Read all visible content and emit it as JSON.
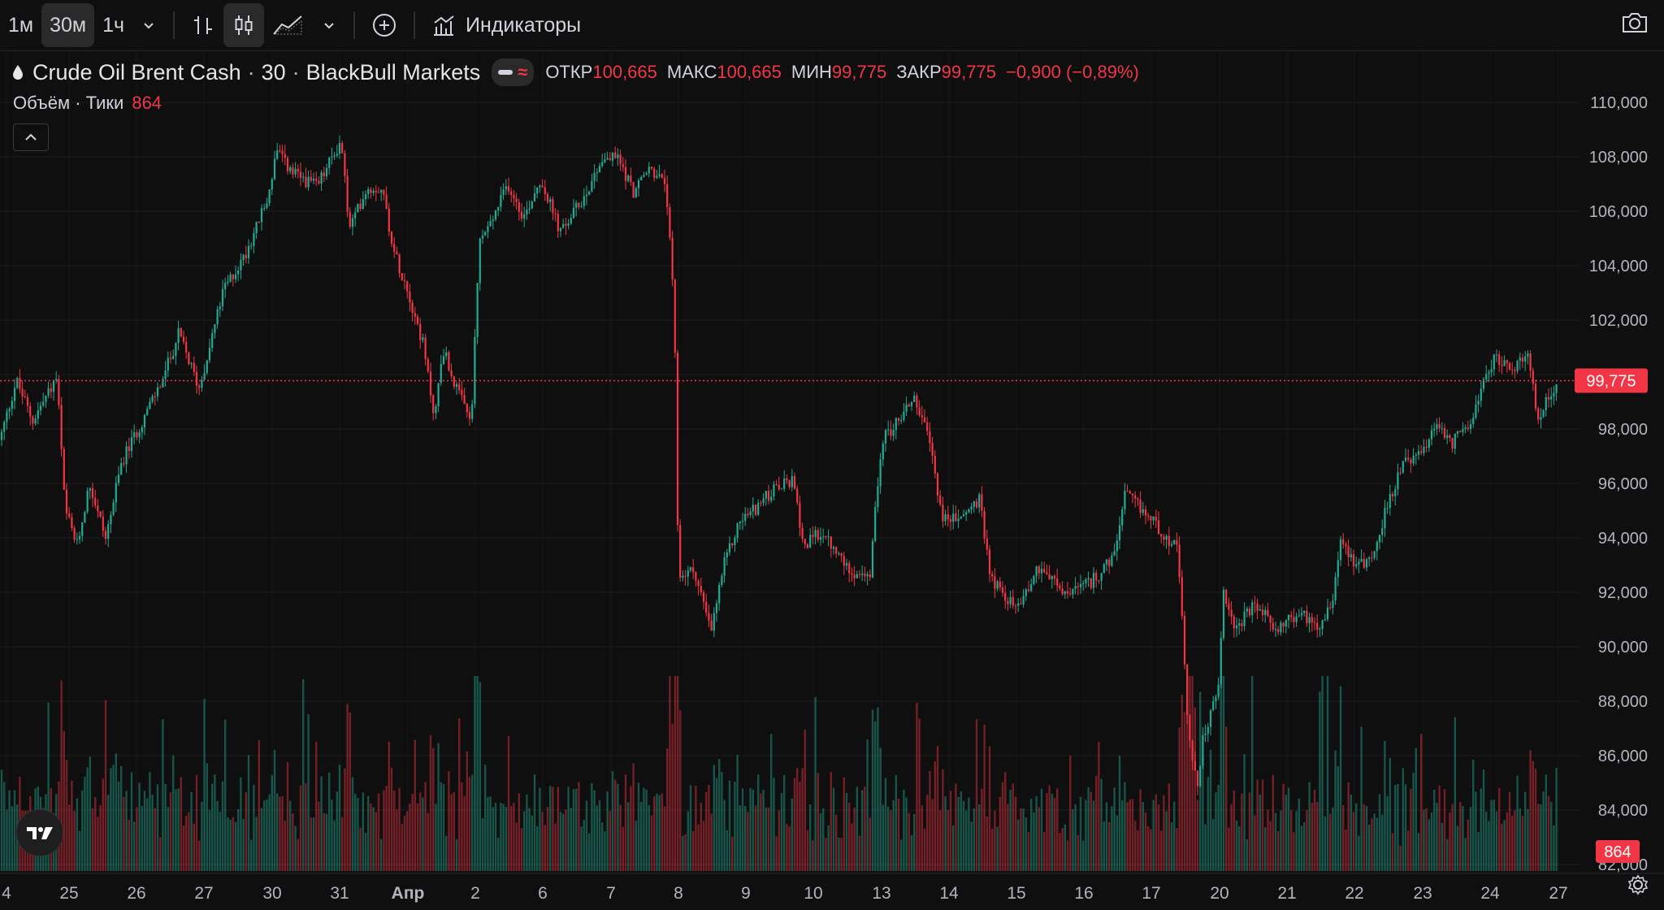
{
  "toolbar": {
    "intervals": [
      "1м",
      "30м",
      "1ч"
    ],
    "active_interval": "30м",
    "indicators_label": "Индикаторы"
  },
  "legend": {
    "symbol": "Crude Oil Brent Cash",
    "interval": "30",
    "exchange": "BlackBull Markets",
    "open_label": "ОТКР",
    "open": "100,665",
    "high_label": "МАКС",
    "high": "100,665",
    "low_label": "МИН",
    "low": "99,775",
    "close_label": "ЗАКР",
    "close": "99,775",
    "change": "−0,900 (−0,89%)"
  },
  "volume_legend": {
    "label": "Объём · Тики",
    "value": "864"
  },
  "colors": {
    "up": "#22ab94",
    "down": "#f23645",
    "background": "#0f0f0f",
    "grid": "#1e1e1e"
  },
  "chart_data": {
    "type": "candlestick",
    "ylim": [
      82000,
      110000
    ],
    "y_ticks": [
      "110,000",
      "108,000",
      "106,000",
      "104,000",
      "102,000",
      "100,000",
      "98,000",
      "96,000",
      "94,000",
      "92,000",
      "90,000",
      "88,000",
      "86,000",
      "84,000",
      "82,000"
    ],
    "x_ticks": [
      "4",
      "25",
      "26",
      "27",
      "30",
      "31",
      "Апр",
      "2",
      "6",
      "7",
      "8",
      "9",
      "10",
      "13",
      "14",
      "15",
      "16",
      "17",
      "20",
      "21",
      "22",
      "23",
      "24",
      "27"
    ],
    "last_price": "99,775",
    "last_volume": "864",
    "price_path": [
      [
        0,
        97600
      ],
      [
        20,
        99800
      ],
      [
        40,
        98300
      ],
      [
        70,
        99900
      ],
      [
        80,
        95000
      ],
      [
        95,
        93700
      ],
      [
        110,
        96000
      ],
      [
        130,
        94000
      ],
      [
        150,
        96800
      ],
      [
        175,
        98300
      ],
      [
        200,
        99800
      ],
      [
        220,
        101500
      ],
      [
        245,
        99500
      ],
      [
        275,
        103100
      ],
      [
        300,
        104300
      ],
      [
        330,
        106500
      ],
      [
        340,
        108200
      ],
      [
        360,
        107400
      ],
      [
        390,
        106900
      ],
      [
        420,
        108600
      ],
      [
        430,
        105300
      ],
      [
        450,
        106800
      ],
      [
        470,
        106900
      ],
      [
        485,
        104500
      ],
      [
        500,
        103300
      ],
      [
        520,
        101200
      ],
      [
        535,
        98400
      ],
      [
        545,
        101000
      ],
      [
        560,
        99600
      ],
      [
        580,
        98200
      ],
      [
        590,
        104900
      ],
      [
        605,
        105600
      ],
      [
        625,
        107000
      ],
      [
        645,
        105800
      ],
      [
        665,
        107200
      ],
      [
        690,
        105200
      ],
      [
        720,
        106600
      ],
      [
        740,
        107900
      ],
      [
        760,
        108000
      ],
      [
        780,
        106700
      ],
      [
        800,
        107600
      ],
      [
        820,
        106900
      ],
      [
        830,
        102100
      ],
      [
        835,
        92600
      ],
      [
        855,
        92800
      ],
      [
        875,
        90500
      ],
      [
        890,
        92900
      ],
      [
        910,
        94600
      ],
      [
        930,
        95100
      ],
      [
        950,
        95700
      ],
      [
        975,
        96100
      ],
      [
        990,
        93700
      ],
      [
        1010,
        94200
      ],
      [
        1040,
        93000
      ],
      [
        1070,
        92400
      ],
      [
        1085,
        97600
      ],
      [
        1100,
        98100
      ],
      [
        1125,
        99200
      ],
      [
        1145,
        97400
      ],
      [
        1160,
        94700
      ],
      [
        1180,
        94700
      ],
      [
        1205,
        95400
      ],
      [
        1220,
        92500
      ],
      [
        1250,
        91400
      ],
      [
        1280,
        93000
      ],
      [
        1310,
        91900
      ],
      [
        1340,
        92300
      ],
      [
        1370,
        93200
      ],
      [
        1385,
        95600
      ],
      [
        1420,
        94600
      ],
      [
        1450,
        93500
      ],
      [
        1462,
        87000
      ],
      [
        1475,
        84500
      ],
      [
        1480,
        86600
      ],
      [
        1500,
        88500
      ],
      [
        1505,
        92000
      ],
      [
        1520,
        90700
      ],
      [
        1545,
        91500
      ],
      [
        1570,
        90700
      ],
      [
        1600,
        91200
      ],
      [
        1625,
        90800
      ],
      [
        1640,
        91800
      ],
      [
        1650,
        94000
      ],
      [
        1670,
        93000
      ],
      [
        1690,
        93300
      ],
      [
        1710,
        95500
      ],
      [
        1730,
        96800
      ],
      [
        1755,
        97200
      ],
      [
        1770,
        98300
      ],
      [
        1785,
        97400
      ],
      [
        1805,
        98100
      ],
      [
        1820,
        99100
      ],
      [
        1840,
        100700
      ],
      [
        1860,
        100200
      ],
      [
        1880,
        100600
      ],
      [
        1895,
        98200
      ],
      [
        1905,
        99300
      ],
      [
        1920,
        99600
      ]
    ]
  }
}
